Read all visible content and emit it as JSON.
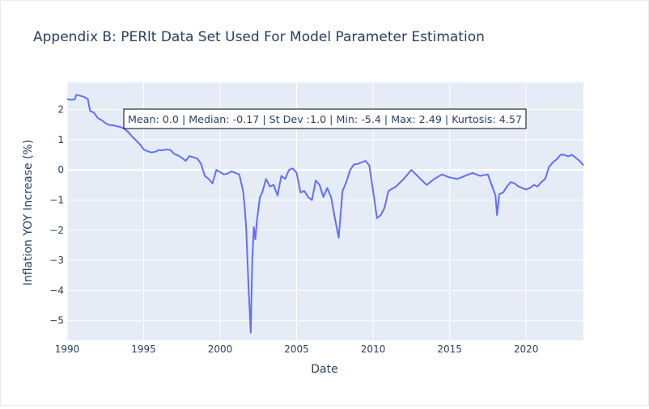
{
  "chart_data": {
    "type": "line",
    "title": "Appendix B: PERlt Data Set Used For Model Parameter Estimation",
    "xlabel": "Date",
    "ylabel": "Inflation YOY Increase (%)",
    "annotation": "Mean: 0.0 | Median: -0.17 | St Dev :1.0 | Min: -5.4 | Max: 2.49 | Kurtosis: 4.57",
    "xlim": [
      1990.0,
      2023.75
    ],
    "ylim": [
      -5.65,
      2.9
    ],
    "grid": true,
    "x_ticks": [
      1990,
      1995,
      2000,
      2005,
      2010,
      2015,
      2020
    ],
    "x_tick_labels": [
      "1990",
      "1995",
      "2000",
      "2005",
      "2010",
      "2015",
      "2020"
    ],
    "y_ticks": [
      2,
      1,
      0,
      -1,
      -2,
      -3,
      -4,
      -5
    ],
    "y_tick_labels": [
      "2",
      "1",
      "0",
      "−1",
      "−2",
      "−3",
      "−4",
      "−5"
    ],
    "line_color": "#636efa",
    "plot_bg": "#e5ecf6",
    "series": [
      {
        "x": [
          1990.0,
          1990.25,
          1990.5,
          1990.6,
          1990.85,
          1991.1,
          1991.35,
          1991.5,
          1991.75,
          1992.0,
          1992.25,
          1992.5,
          1992.75,
          1993.0,
          1993.25,
          1993.5,
          1993.75,
          1994.0,
          1994.25,
          1994.5,
          1994.75,
          1995.0,
          1995.25,
          1995.5,
          1995.75,
          1996.0,
          1996.25,
          1996.5,
          1996.75,
          1997.0,
          1997.25,
          1997.5,
          1997.75,
          1998.0,
          1998.25,
          1998.5,
          1998.75,
          1999.0,
          1999.25,
          1999.5,
          1999.75,
          2000.0,
          2000.25,
          2000.5,
          2000.75,
          2001.0,
          2001.25,
          2001.5,
          2001.6,
          2001.7,
          2001.85,
          2002.0,
          2002.1,
          2002.2,
          2002.3,
          2002.4,
          2002.5,
          2002.6,
          2002.75,
          2003.0,
          2003.25,
          2003.5,
          2003.75,
          2004.0,
          2004.25,
          2004.5,
          2004.75,
          2005.0,
          2005.25,
          2005.5,
          2005.75,
          2006.0,
          2006.25,
          2006.5,
          2006.75,
          2007.0,
          2007.25,
          2007.5,
          2007.75,
          2008.0,
          2008.25,
          2008.5,
          2008.75,
          2009.0,
          2009.25,
          2009.5,
          2009.75,
          2010.0,
          2010.25,
          2010.5,
          2010.75,
          2011.0,
          2011.5,
          2012.0,
          2012.5,
          2013.0,
          2013.5,
          2014.0,
          2014.5,
          2015.0,
          2015.5,
          2016.0,
          2016.5,
          2017.0,
          2017.5,
          2017.75,
          2018.0,
          2018.1,
          2018.25,
          2018.5,
          2018.75,
          2019.0,
          2019.25,
          2019.5,
          2019.75,
          2020.0,
          2020.25,
          2020.5,
          2020.75,
          2021.0,
          2021.25,
          2021.5,
          2021.75,
          2022.0,
          2022.25,
          2022.5,
          2022.75,
          2023.0,
          2023.25,
          2023.5,
          2023.75
        ],
        "values": [
          2.35,
          2.32,
          2.34,
          2.49,
          2.46,
          2.42,
          2.35,
          1.95,
          1.9,
          1.72,
          1.65,
          1.55,
          1.49,
          1.48,
          1.45,
          1.42,
          1.36,
          1.25,
          1.1,
          0.98,
          0.85,
          0.68,
          0.62,
          0.58,
          0.6,
          0.66,
          0.65,
          0.68,
          0.66,
          0.53,
          0.48,
          0.4,
          0.3,
          0.46,
          0.42,
          0.38,
          0.2,
          -0.2,
          -0.3,
          -0.45,
          0.0,
          -0.08,
          -0.15,
          -0.12,
          -0.05,
          -0.1,
          -0.15,
          -0.7,
          -1.2,
          -1.9,
          -3.8,
          -5.4,
          -3.0,
          -1.9,
          -2.3,
          -1.7,
          -1.3,
          -0.9,
          -0.75,
          -0.3,
          -0.55,
          -0.5,
          -0.85,
          -0.2,
          -0.3,
          0.0,
          0.05,
          -0.1,
          -0.75,
          -0.7,
          -0.9,
          -1.0,
          -0.35,
          -0.5,
          -0.9,
          -0.6,
          -0.9,
          -1.6,
          -2.25,
          -0.7,
          -0.4,
          0.0,
          0.18,
          0.2,
          0.25,
          0.3,
          0.15,
          -0.7,
          -1.6,
          -1.5,
          -1.25,
          -0.7,
          -0.55,
          -0.3,
          0.0,
          -0.25,
          -0.5,
          -0.3,
          -0.15,
          -0.25,
          -0.3,
          -0.2,
          -0.1,
          -0.2,
          -0.15,
          -0.5,
          -0.85,
          -1.5,
          -0.8,
          -0.75,
          -0.55,
          -0.4,
          -0.45,
          -0.55,
          -0.6,
          -0.65,
          -0.6,
          -0.5,
          -0.55,
          -0.4,
          -0.3,
          0.1,
          0.25,
          0.35,
          0.5,
          0.5,
          0.45,
          0.5,
          0.4,
          0.3,
          0.15
        ]
      }
    ]
  }
}
